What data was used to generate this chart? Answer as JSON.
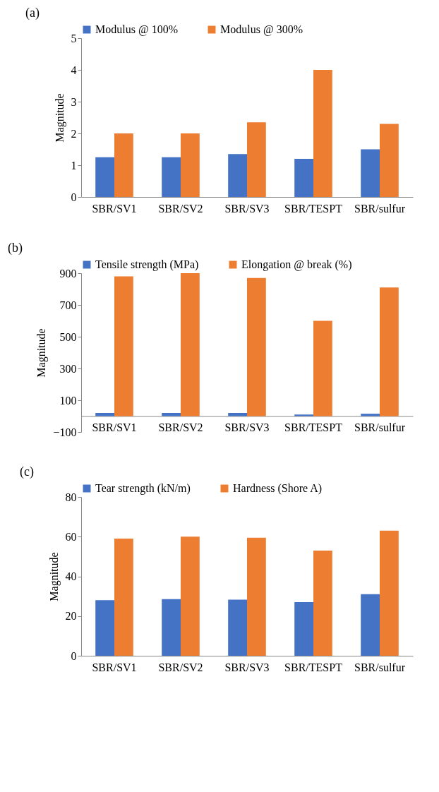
{
  "chart_data": [
    {
      "type": "bar",
      "title": "(a)",
      "ylabel": "Magnitude",
      "categories": [
        "SBR/SV1",
        "SBR/SV2",
        "SBR/SV3",
        "SBR/TESPT",
        "SBR/sulfur"
      ],
      "series": [
        {
          "name": "Modulus @ 100%",
          "color": "#4472c4",
          "values": [
            1.25,
            1.25,
            1.35,
            1.2,
            1.5
          ]
        },
        {
          "name": "Modulus @ 300%",
          "color": "#ed7d31",
          "values": [
            2.0,
            2.0,
            2.35,
            4.0,
            2.3
          ]
        }
      ],
      "ylim": [
        0,
        5
      ],
      "yticks": [
        0,
        1,
        2,
        3,
        4,
        5
      ],
      "grid": false,
      "legend": "top"
    },
    {
      "type": "bar",
      "title": "(b)",
      "ylabel": "Magnitude",
      "categories": [
        "SBR/SV1",
        "SBR/SV2",
        "SBR/SV3",
        "SBR/TESPT",
        "SBR/sulfur"
      ],
      "series": [
        {
          "name": "Tensile strength (MPa)",
          "color": "#4472c4",
          "values": [
            20,
            20,
            20,
            10,
            15
          ]
        },
        {
          "name": "Elongation @ break (%)",
          "color": "#ed7d31",
          "values": [
            880,
            900,
            870,
            600,
            810
          ]
        }
      ],
      "ylim": [
        -100,
        900
      ],
      "yticks": [
        -100,
        100,
        300,
        500,
        700,
        900
      ],
      "grid": false,
      "legend": "top"
    },
    {
      "type": "bar",
      "title": "(c)",
      "ylabel": "Magnitude",
      "categories": [
        "SBR/SV1",
        "SBR/SV2",
        "SBR/SV3",
        "SBR/TESPT",
        "SBR/sulfur"
      ],
      "series": [
        {
          "name": "Tear strength (kN/m)",
          "color": "#4472c4",
          "values": [
            28,
            28.5,
            28.3,
            27,
            31
          ]
        },
        {
          "name": "Hardness (Shore A)",
          "color": "#ed7d31",
          "values": [
            59,
            60,
            59.5,
            53,
            63
          ]
        }
      ],
      "ylim": [
        0,
        80
      ],
      "yticks": [
        0,
        20,
        40,
        60,
        80
      ],
      "grid": false,
      "legend": "top"
    }
  ]
}
